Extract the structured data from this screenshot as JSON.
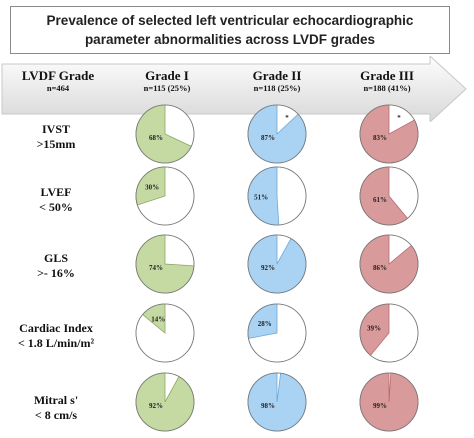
{
  "chart_data": {
    "type": "pie",
    "title_line1": "Prevalence of selected left ventricular  echocardiographic",
    "title_line2": "parameter abnormalities across LVDF grades",
    "row_header": {
      "name": "LVDF Grade",
      "sub": "n=464"
    },
    "columns": [
      {
        "name": "Grade I",
        "sub": "n=115 (25%)",
        "color": "#c5d9a2",
        "stroke": "#8aa866"
      },
      {
        "name": "Grade II",
        "sub": "n=118 (25%)",
        "color": "#a9d2f3",
        "stroke": "#6fa8d8"
      },
      {
        "name": "Grade III",
        "sub": "n=188 (41%)",
        "color": "#d99a9c",
        "stroke": "#b46e71"
      }
    ],
    "rows": [
      {
        "label1": "IVST",
        "label2": ">15mm",
        "values": [
          68,
          87,
          83
        ],
        "labels": [
          "68%",
          "87%",
          "83%"
        ],
        "marks": [
          "",
          "*",
          "*"
        ]
      },
      {
        "label1": "LVEF",
        "label2": "< 50%",
        "values": [
          30,
          51,
          61
        ],
        "labels": [
          "30%",
          "51%",
          "61%"
        ],
        "marks": [
          "",
          "",
          ""
        ]
      },
      {
        "label1": "GLS",
        "label2": ">- 16%",
        "values": [
          74,
          92,
          86
        ],
        "labels": [
          "74%",
          "92%",
          "86%"
        ],
        "marks": [
          "",
          "",
          ""
        ]
      },
      {
        "label1": "Cardiac Index",
        "label2": "< 1.8 L/min/m²",
        "values": [
          14,
          28,
          39
        ],
        "labels": [
          "14%",
          "28%",
          "39%"
        ],
        "marks": [
          "",
          "",
          ""
        ]
      },
      {
        "label1": "Mitral s'",
        "label2": "< 8 cm/s",
        "values": [
          92,
          98,
          99
        ],
        "labels": [
          "92%",
          "98%",
          "99%"
        ],
        "marks": [
          "",
          "",
          ""
        ]
      }
    ],
    "legend": "none",
    "grid": false
  }
}
